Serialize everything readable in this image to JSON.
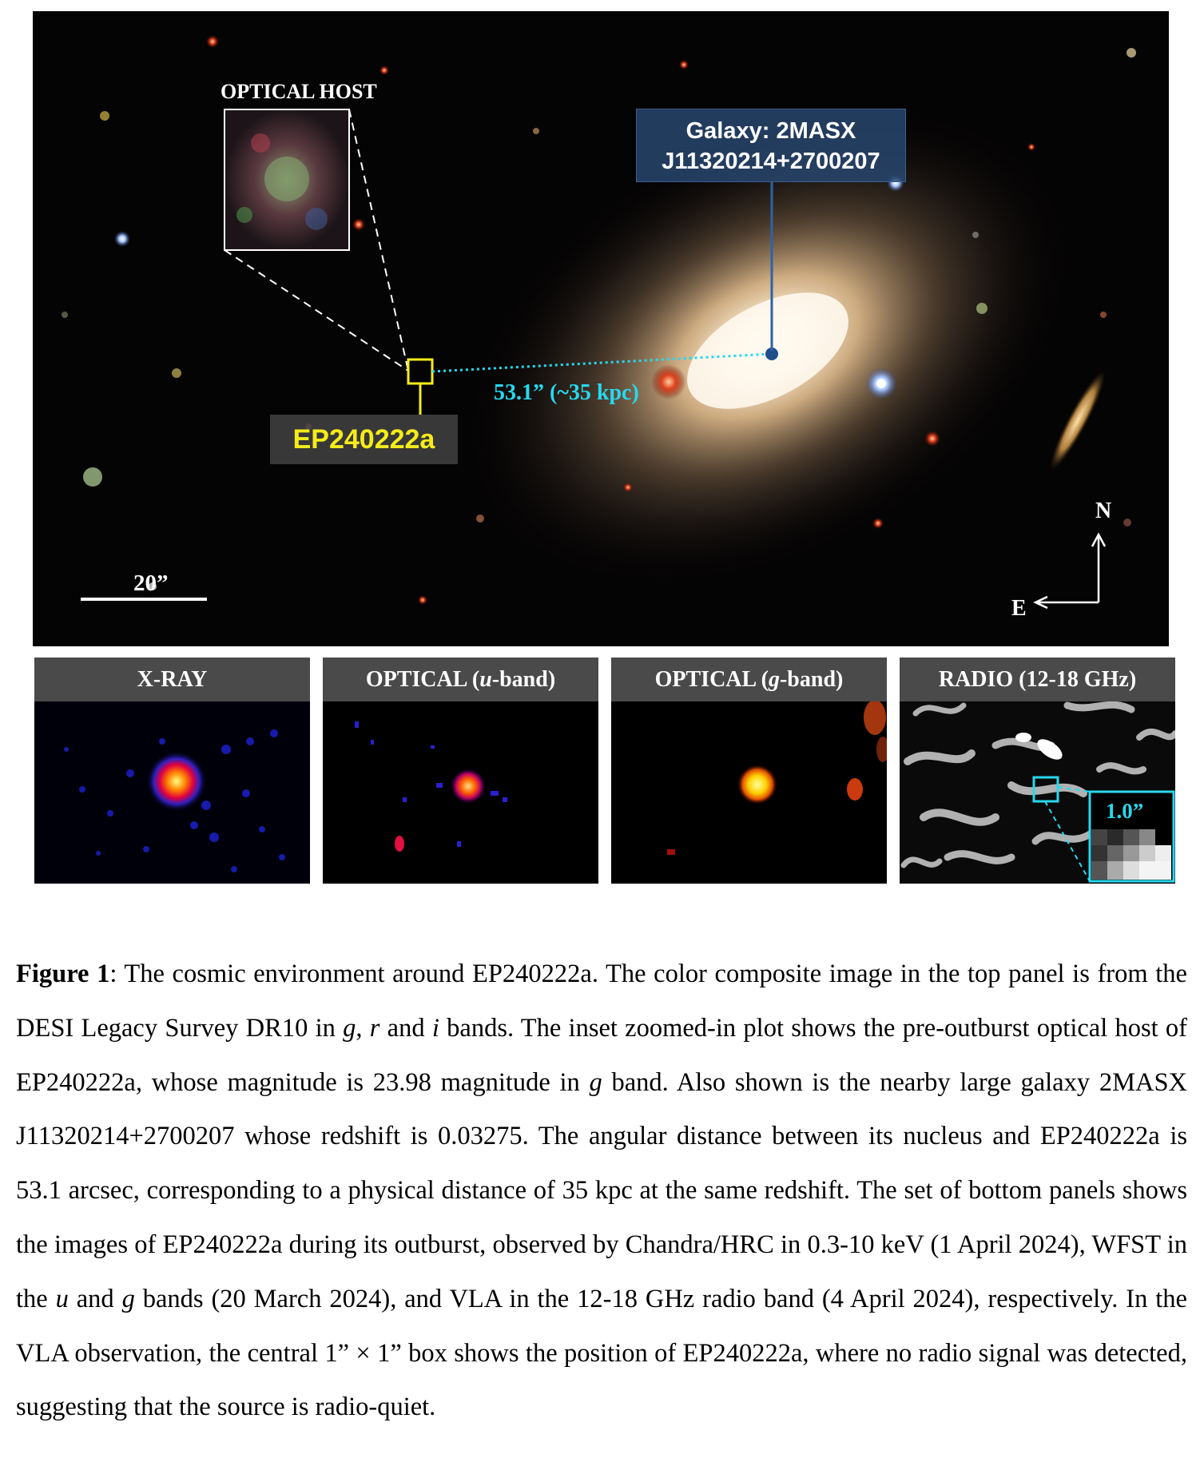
{
  "top_panel": {
    "optical_host_label": "OPTICAL HOST",
    "galaxy_label_line1": "Galaxy: 2MASX",
    "galaxy_label_line2": "J11320214+2700207",
    "source_label": "EP240222a",
    "distance_label": "53.1” (~35 kpc)",
    "scale_label": "20”",
    "north_label": "N",
    "east_label": "E"
  },
  "bottom_panels": [
    {
      "title": "X-RAY"
    },
    {
      "title_prefix": "OPTICAL (",
      "title_band": "u",
      "title_suffix": "-band)"
    },
    {
      "title_prefix": "OPTICAL (",
      "title_band": "g",
      "title_suffix": "-band)"
    },
    {
      "title": "RADIO (12-18 GHz)",
      "inset_label": "1.0”"
    }
  ],
  "caption": {
    "fig_label": "Figure 1",
    "p1": ": The cosmic environment around EP240222a. The color composite image in the top panel is from the DESI Legacy Survey DR10 in ",
    "b1": "g",
    "p2": ", ",
    "b2": "r",
    "p3": " and ",
    "b3": "i",
    "p4": " bands. The inset zoomed-in plot shows the pre-outburst optical host of EP240222a, whose magnitude is 23.98 magnitude in ",
    "b4": "g",
    "p5": " band. Also shown is the nearby large galaxy 2MASX J11320214+2700207 whose redshift is 0.03275. The angular distance between its nucleus and EP240222a is 53.1 arcsec, corresponding to a physical distance of 35 kpc at the same redshift. The set of bottom panels shows the images of EP240222a during its outburst, observed by Chandra/HRC in 0.3-10 keV (1 April 2024), WFST in the ",
    "b5": "u",
    "p6": " and ",
    "b6": "g",
    "p7": " bands (20 March 2024), and VLA in the 12-18 GHz radio band (4 April 2024), respectively. In the VLA observation, the central 1” × 1” box shows the position of EP240222a, where no radio signal was detected, suggesting that the source is radio-quiet."
  }
}
